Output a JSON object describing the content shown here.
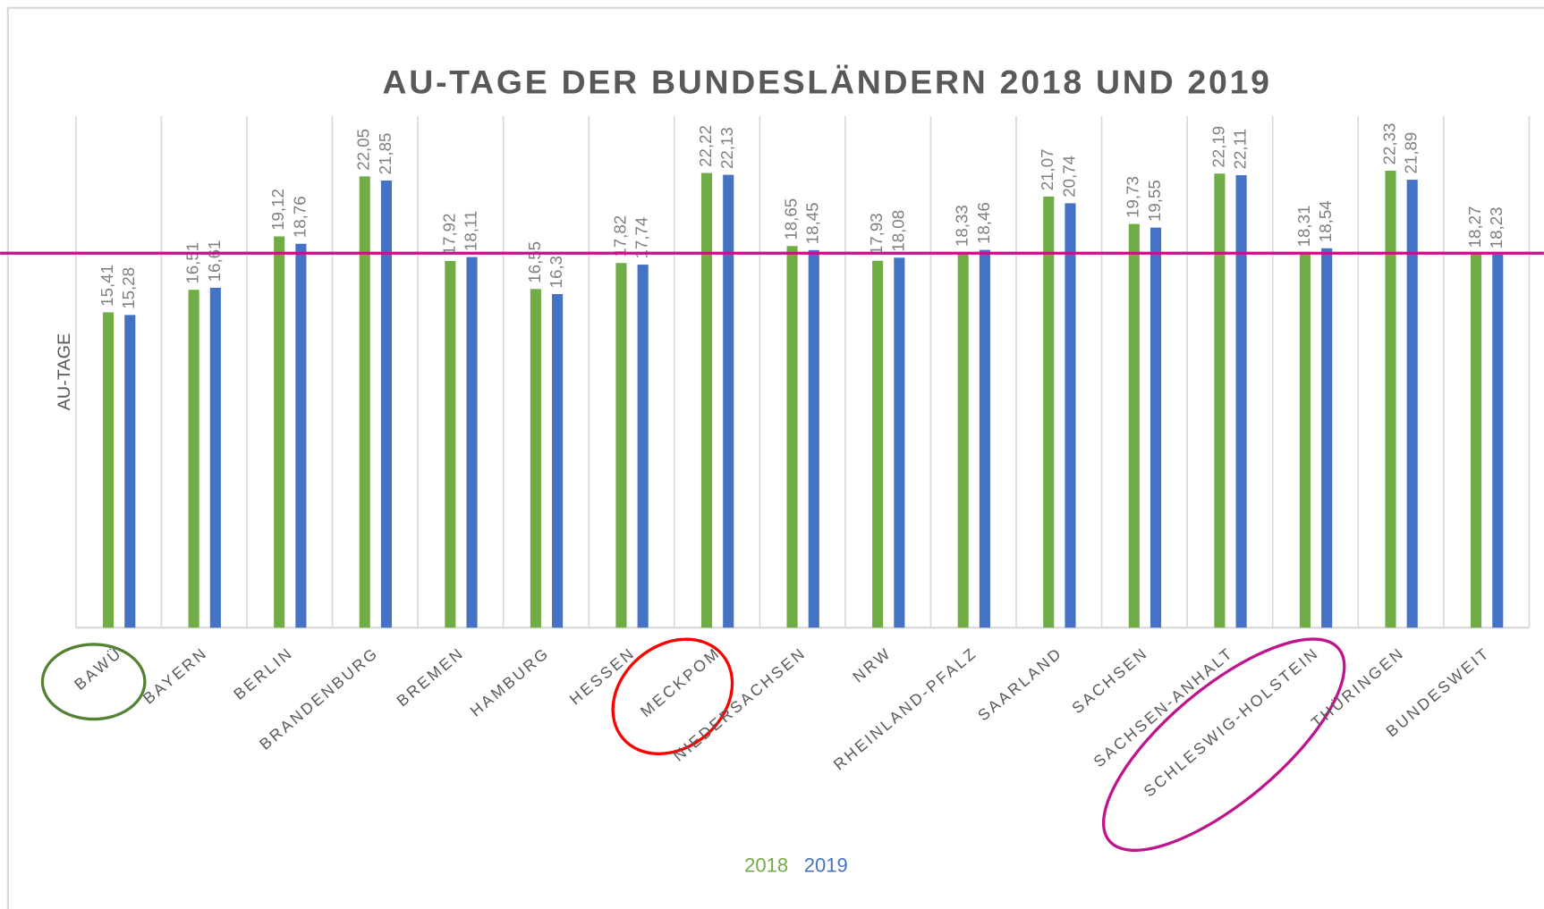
{
  "chart_data": {
    "type": "bar",
    "title": "AU-TAGE DER BUNDESLÄNDERN 2018 UND 2019",
    "y_label": "AU-TAGE",
    "categories": [
      "BAWÜ",
      "BAYERN",
      "BERLIN",
      "BRANDENBURG",
      "BREMEN",
      "HAMBURG",
      "HESSEN",
      "MECKPOM",
      "NIEDERSACHSEN",
      "NRW",
      "RHEINLAND-PFALZ",
      "SAARLAND",
      "SACHSEN",
      "SACHSEN-ANHALT",
      "SCHLESWIG-HOLSTEIN",
      "THÜRINGEN",
      "BUNDESWEIT"
    ],
    "series": [
      {
        "name": "2018",
        "color": "#70ad47",
        "values": [
          15.41,
          16.51,
          19.12,
          22.05,
          17.92,
          16.55,
          17.82,
          22.22,
          18.65,
          17.93,
          18.33,
          21.07,
          19.73,
          22.19,
          18.31,
          22.33,
          18.27
        ],
        "value_labels": [
          "15,41",
          "16,51",
          "19,12",
          "22,05",
          "17,92",
          "16,55",
          "17,82",
          "22,22",
          "18,65",
          "17,93",
          "18,33",
          "21,07",
          "19,73",
          "22,19",
          "18,31",
          "22,33",
          "18,27"
        ]
      },
      {
        "name": "2019",
        "color": "#4472c4",
        "values": [
          15.28,
          16.61,
          18.76,
          21.85,
          18.11,
          16.3,
          17.74,
          22.13,
          18.45,
          18.08,
          18.46,
          20.74,
          19.55,
          22.11,
          18.54,
          21.89,
          18.23
        ],
        "value_labels": [
          "15,28",
          "16,61",
          "18,76",
          "21,85",
          "18,11",
          "16,3",
          "17,74",
          "22,13",
          "18,45",
          "18,08",
          "18,46",
          "20,74",
          "19,55",
          "22,11",
          "18,54",
          "21,89",
          "18,23"
        ]
      }
    ],
    "ylim": [
      0,
      25
    ],
    "reference_line": {
      "value": 18.3,
      "color": "#c0148c"
    }
  }
}
